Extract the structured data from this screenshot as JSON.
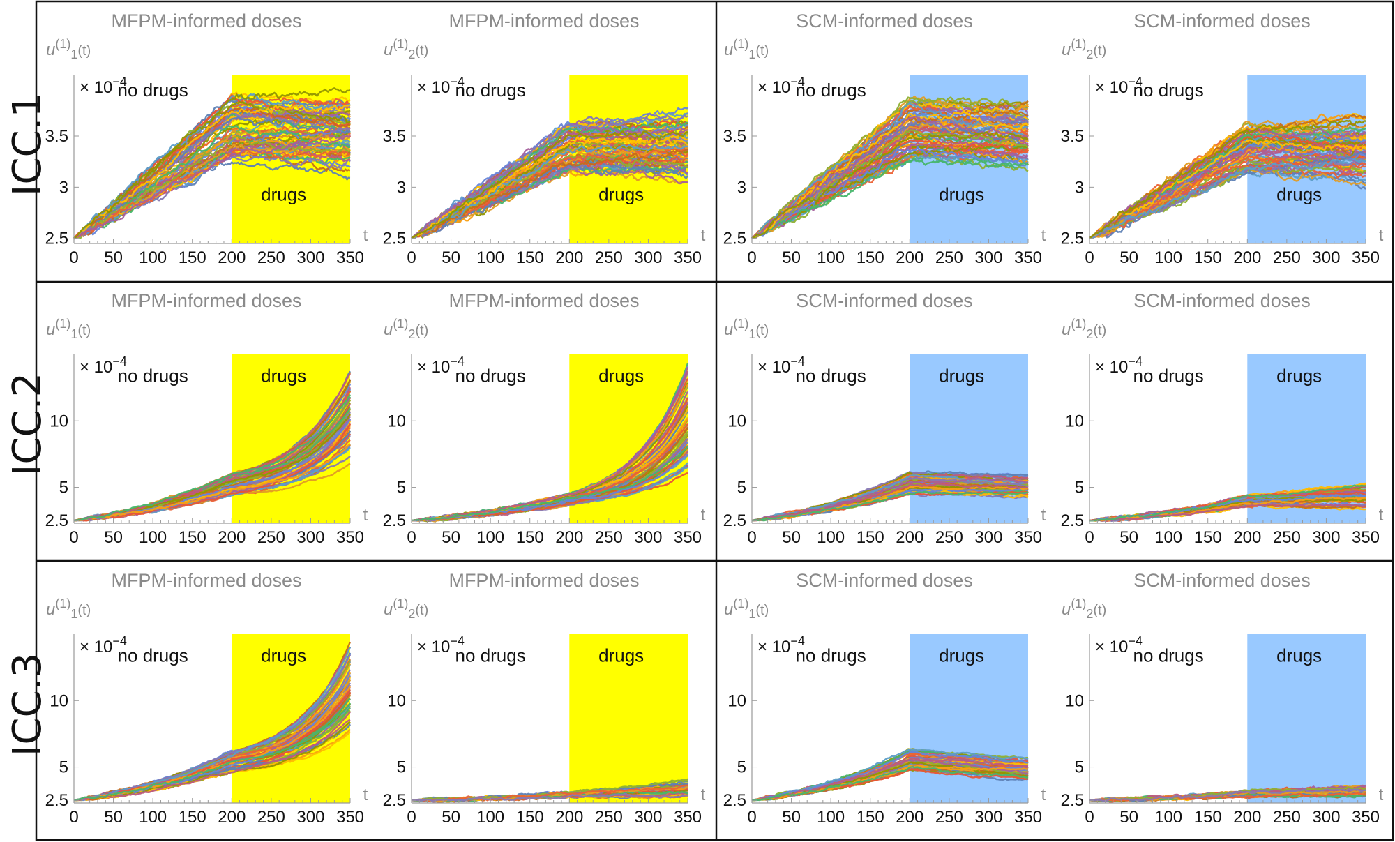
{
  "figure": {
    "row_labels": [
      "ICC.1",
      "ICC.2",
      "ICC.3"
    ],
    "colors": {
      "mfpm_shade": "#ffff00",
      "scm_shade": "#99c9ff",
      "series_palette": [
        "#5e81b5",
        "#e19c24",
        "#8fb032",
        "#eb6235",
        "#8778b3",
        "#c56e1a",
        "#5d9ec7",
        "#ffbf00",
        "#a5609d",
        "#929600",
        "#e95536",
        "#6685d9",
        "#f89f13",
        "#bc5b80",
        "#47b66d"
      ]
    }
  },
  "chart_data": [
    {
      "type": "line",
      "row": "ICC.1",
      "title": "MFPM-informed doses",
      "ylabel_base": "u",
      "ylabel_sup": "(1)",
      "ylabel_sub": "1",
      "ylabel_tail": "(t)",
      "xlabel": "t",
      "multiplier_text": "× 10",
      "multiplier_exp": "−4",
      "xticks": [
        "0",
        "50",
        "100",
        "150",
        "200",
        "250",
        "300",
        "350"
      ],
      "yticks": [
        "2.5",
        "3",
        "3.5"
      ],
      "yticks_values": [
        2.5,
        3,
        3.5
      ],
      "xlim": [
        0,
        350
      ],
      "ylim": [
        2.45,
        4.1
      ],
      "shade": {
        "from": 200,
        "to": 350,
        "color": "mfpm"
      },
      "annotations": [
        {
          "text": "no drugs",
          "x": 100,
          "y": 3.95
        },
        {
          "text": "drugs",
          "x": 237,
          "y": 2.93
        }
      ],
      "ensemble": {
        "n_paths": 70,
        "x_start": 0,
        "y_start": 2.5,
        "y_switch": [
          3.25,
          3.88
        ],
        "y_end": [
          3.1,
          3.97
        ],
        "x_switch": 200,
        "x_end": 350
      }
    },
    {
      "type": "line",
      "row": "ICC.1",
      "title": "MFPM-informed doses",
      "ylabel_base": "u",
      "ylabel_sup": "(1)",
      "ylabel_sub": "2",
      "ylabel_tail": "(t)",
      "xlabel": "t",
      "multiplier_text": "× 10",
      "multiplier_exp": "−4",
      "xticks": [
        "0",
        "50",
        "100",
        "150",
        "200",
        "250",
        "300",
        "350"
      ],
      "yticks": [
        "2.5",
        "3",
        "3.5"
      ],
      "yticks_values": [
        2.5,
        3,
        3.5
      ],
      "xlim": [
        0,
        350
      ],
      "ylim": [
        2.45,
        4.1
      ],
      "shade": {
        "from": 200,
        "to": 350,
        "color": "mfpm"
      },
      "annotations": [
        {
          "text": "no drugs",
          "x": 100,
          "y": 3.95
        },
        {
          "text": "drugs",
          "x": 237,
          "y": 2.93
        }
      ],
      "ensemble": {
        "n_paths": 70,
        "x_start": 0,
        "y_start": 2.5,
        "y_switch": [
          3.15,
          3.62
        ],
        "y_end": [
          3.0,
          3.78
        ],
        "x_switch": 200,
        "x_end": 350
      }
    },
    {
      "type": "line",
      "row": "ICC.1",
      "title": "SCM-informed doses",
      "ylabel_base": "u",
      "ylabel_sup": "(1)",
      "ylabel_sub": "1",
      "ylabel_tail": "(t)",
      "xlabel": "t",
      "multiplier_text": "× 10",
      "multiplier_exp": "−4",
      "xticks": [
        "0",
        "50",
        "100",
        "150",
        "200",
        "250",
        "300",
        "350"
      ],
      "yticks": [
        "2.5",
        "3",
        "3.5"
      ],
      "yticks_values": [
        2.5,
        3,
        3.5
      ],
      "xlim": [
        0,
        350
      ],
      "ylim": [
        2.45,
        4.1
      ],
      "shade": {
        "from": 200,
        "to": 350,
        "color": "scm"
      },
      "annotations": [
        {
          "text": "no drugs",
          "x": 100,
          "y": 3.95
        },
        {
          "text": "drugs",
          "x": 237,
          "y": 2.93
        }
      ],
      "ensemble": {
        "n_paths": 70,
        "x_start": 0,
        "y_start": 2.5,
        "y_switch": [
          3.25,
          3.88
        ],
        "y_end": [
          3.1,
          3.97
        ],
        "x_switch": 200,
        "x_end": 350
      }
    },
    {
      "type": "line",
      "row": "ICC.1",
      "title": "SCM-informed doses",
      "ylabel_base": "u",
      "ylabel_sup": "(1)",
      "ylabel_sub": "2",
      "ylabel_tail": "(t)",
      "xlabel": "t",
      "multiplier_text": "× 10",
      "multiplier_exp": "−4",
      "xticks": [
        "0",
        "50",
        "100",
        "150",
        "200",
        "250",
        "300",
        "350"
      ],
      "yticks": [
        "2.5",
        "3",
        "3.5"
      ],
      "yticks_values": [
        2.5,
        3,
        3.5
      ],
      "xlim": [
        0,
        350
      ],
      "ylim": [
        2.45,
        4.1
      ],
      "shade": {
        "from": 200,
        "to": 350,
        "color": "scm"
      },
      "annotations": [
        {
          "text": "no drugs",
          "x": 100,
          "y": 3.95
        },
        {
          "text": "drugs",
          "x": 237,
          "y": 2.93
        }
      ],
      "ensemble": {
        "n_paths": 70,
        "x_start": 0,
        "y_start": 2.5,
        "y_switch": [
          3.15,
          3.62
        ],
        "y_end": [
          3.0,
          3.78
        ],
        "x_switch": 200,
        "x_end": 350
      }
    },
    {
      "type": "line",
      "row": "ICC.2",
      "title": "MFPM-informed doses",
      "ylabel_base": "u",
      "ylabel_sup": "(1)",
      "ylabel_sub": "1",
      "ylabel_tail": "(t)",
      "xlabel": "t",
      "multiplier_text": "× 10",
      "multiplier_exp": "−4",
      "xticks": [
        "0",
        "50",
        "100",
        "150",
        "200",
        "250",
        "300",
        "350"
      ],
      "yticks": [
        "2.5",
        "5",
        "10"
      ],
      "yticks_values": [
        2.5,
        5,
        10
      ],
      "xlim": [
        0,
        350
      ],
      "ylim": [
        2.3,
        15
      ],
      "shade": {
        "from": 200,
        "to": 350,
        "color": "mfpm"
      },
      "annotations": [
        {
          "text": "no drugs",
          "x": 100,
          "y": 13.4
        },
        {
          "text": "drugs",
          "x": 237,
          "y": 13.4
        }
      ],
      "ensemble": {
        "n_paths": 60,
        "x_start": 0,
        "y_start": 2.5,
        "y_switch": [
          4.4,
          6.1
        ],
        "y_end": [
          6.5,
          15.0
        ],
        "x_switch": 200,
        "x_end": 350,
        "post_shape": "exp"
      }
    },
    {
      "type": "line",
      "row": "ICC.2",
      "title": "MFPM-informed doses",
      "ylabel_base": "u",
      "ylabel_sup": "(1)",
      "ylabel_sub": "2",
      "ylabel_tail": "(t)",
      "xlabel": "t",
      "multiplier_text": "× 10",
      "multiplier_exp": "−4",
      "xticks": [
        "0",
        "50",
        "100",
        "150",
        "200",
        "250",
        "300",
        "350"
      ],
      "yticks": [
        "2.5",
        "5",
        "10"
      ],
      "yticks_values": [
        2.5,
        5,
        10
      ],
      "xlim": [
        0,
        350
      ],
      "ylim": [
        2.3,
        15
      ],
      "shade": {
        "from": 200,
        "to": 350,
        "color": "mfpm"
      },
      "annotations": [
        {
          "text": "no drugs",
          "x": 100,
          "y": 13.4
        },
        {
          "text": "drugs",
          "x": 237,
          "y": 13.4
        }
      ],
      "ensemble": {
        "n_paths": 60,
        "x_start": 0,
        "y_start": 2.5,
        "y_switch": [
          3.7,
          4.6
        ],
        "y_end": [
          4.8,
          15.0
        ],
        "x_switch": 200,
        "x_end": 350,
        "post_shape": "exp"
      }
    },
    {
      "type": "line",
      "row": "ICC.2",
      "title": "SCM-informed doses",
      "ylabel_base": "u",
      "ylabel_sup": "(1)",
      "ylabel_sub": "1",
      "ylabel_tail": "(t)",
      "xlabel": "t",
      "multiplier_text": "× 10",
      "multiplier_exp": "−4",
      "xticks": [
        "0",
        "50",
        "100",
        "150",
        "200",
        "250",
        "300",
        "350"
      ],
      "yticks": [
        "2.5",
        "5",
        "10"
      ],
      "yticks_values": [
        2.5,
        5,
        10
      ],
      "xlim": [
        0,
        350
      ],
      "ylim": [
        2.3,
        15
      ],
      "shade": {
        "from": 200,
        "to": 350,
        "color": "scm"
      },
      "annotations": [
        {
          "text": "no drugs",
          "x": 100,
          "y": 13.4
        },
        {
          "text": "drugs",
          "x": 237,
          "y": 13.4
        }
      ],
      "ensemble": {
        "n_paths": 60,
        "x_start": 0,
        "y_start": 2.5,
        "y_switch": [
          4.4,
          6.1
        ],
        "y_end": [
          3.9,
          6.0
        ],
        "x_switch": 200,
        "x_end": 350
      }
    },
    {
      "type": "line",
      "row": "ICC.2",
      "title": "SCM-informed doses",
      "ylabel_base": "u",
      "ylabel_sup": "(1)",
      "ylabel_sub": "2",
      "ylabel_tail": "(t)",
      "xlabel": "t",
      "multiplier_text": "× 10",
      "multiplier_exp": "−4",
      "xticks": [
        "0",
        "50",
        "100",
        "150",
        "200",
        "250",
        "300",
        "350"
      ],
      "yticks": [
        "2.5",
        "5",
        "10"
      ],
      "yticks_values": [
        2.5,
        5,
        10
      ],
      "xlim": [
        0,
        350
      ],
      "ylim": [
        2.3,
        15
      ],
      "shade": {
        "from": 200,
        "to": 350,
        "color": "scm"
      },
      "annotations": [
        {
          "text": "no drugs",
          "x": 100,
          "y": 13.4
        },
        {
          "text": "drugs",
          "x": 237,
          "y": 13.4
        }
      ],
      "ensemble": {
        "n_paths": 60,
        "x_start": 0,
        "y_start": 2.5,
        "y_switch": [
          3.6,
          4.4
        ],
        "y_end": [
          3.2,
          5.5
        ],
        "x_switch": 200,
        "x_end": 350
      }
    },
    {
      "type": "line",
      "row": "ICC.3",
      "title": "MFPM-informed doses",
      "ylabel_base": "u",
      "ylabel_sup": "(1)",
      "ylabel_sub": "1",
      "ylabel_tail": "(t)",
      "xlabel": "t",
      "multiplier_text": "× 10",
      "multiplier_exp": "−4",
      "xticks": [
        "0",
        "50",
        "100",
        "150",
        "200",
        "250",
        "300",
        "350"
      ],
      "yticks": [
        "2.5",
        "5",
        "10"
      ],
      "yticks_values": [
        2.5,
        5,
        10
      ],
      "xlim": [
        0,
        350
      ],
      "ylim": [
        2.3,
        15
      ],
      "shade": {
        "from": 200,
        "to": 350,
        "color": "mfpm"
      },
      "annotations": [
        {
          "text": "no drugs",
          "x": 100,
          "y": 13.4
        },
        {
          "text": "drugs",
          "x": 237,
          "y": 13.4
        }
      ],
      "ensemble": {
        "n_paths": 60,
        "x_start": 0,
        "y_start": 2.5,
        "y_switch": [
          4.6,
          6.2
        ],
        "y_end": [
          7.0,
          15.0
        ],
        "x_switch": 200,
        "x_end": 350,
        "post_shape": "exp"
      }
    },
    {
      "type": "line",
      "row": "ICC.3",
      "title": "MFPM-informed doses",
      "ylabel_base": "u",
      "ylabel_sup": "(1)",
      "ylabel_sub": "2",
      "ylabel_tail": "(t)",
      "xlabel": "t",
      "multiplier_text": "× 10",
      "multiplier_exp": "−4",
      "xticks": [
        "0",
        "50",
        "100",
        "150",
        "200",
        "250",
        "300",
        "350"
      ],
      "yticks": [
        "2.5",
        "5",
        "10"
      ],
      "yticks_values": [
        2.5,
        5,
        10
      ],
      "xlim": [
        0,
        350
      ],
      "ylim": [
        2.3,
        15
      ],
      "shade": {
        "from": 200,
        "to": 350,
        "color": "mfpm"
      },
      "annotations": [
        {
          "text": "no drugs",
          "x": 100,
          "y": 13.4
        },
        {
          "text": "drugs",
          "x": 237,
          "y": 13.4
        }
      ],
      "ensemble": {
        "n_paths": 50,
        "x_start": 0,
        "y_start": 2.5,
        "y_switch": [
          2.75,
          3.1
        ],
        "y_end": [
          2.6,
          4.0
        ],
        "x_switch": 200,
        "x_end": 350
      }
    },
    {
      "type": "line",
      "row": "ICC.3",
      "title": "SCM-informed doses",
      "ylabel_base": "u",
      "ylabel_sup": "(1)",
      "ylabel_sub": "1",
      "ylabel_tail": "(t)",
      "xlabel": "t",
      "multiplier_text": "× 10",
      "multiplier_exp": "−4",
      "xticks": [
        "0",
        "50",
        "100",
        "150",
        "200",
        "250",
        "300",
        "350"
      ],
      "yticks": [
        "2.5",
        "5",
        "10"
      ],
      "yticks_values": [
        2.5,
        5,
        10
      ],
      "xlim": [
        0,
        350
      ],
      "ylim": [
        2.3,
        15
      ],
      "shade": {
        "from": 200,
        "to": 350,
        "color": "scm"
      },
      "annotations": [
        {
          "text": "no drugs",
          "x": 100,
          "y": 13.4
        },
        {
          "text": "drugs",
          "x": 237,
          "y": 13.4
        }
      ],
      "ensemble": {
        "n_paths": 60,
        "x_start": 0,
        "y_start": 2.5,
        "y_switch": [
          4.7,
          6.3
        ],
        "y_end": [
          3.8,
          5.9
        ],
        "x_switch": 200,
        "x_end": 350
      }
    },
    {
      "type": "line",
      "row": "ICC.3",
      "title": "SCM-informed doses",
      "ylabel_base": "u",
      "ylabel_sup": "(1)",
      "ylabel_sub": "2",
      "ylabel_tail": "(t)",
      "xlabel": "t",
      "multiplier_text": "× 10",
      "multiplier_exp": "−4",
      "xticks": [
        "0",
        "50",
        "100",
        "150",
        "200",
        "250",
        "300",
        "350"
      ],
      "yticks": [
        "2.5",
        "5",
        "10"
      ],
      "yticks_values": [
        2.5,
        5,
        10
      ],
      "xlim": [
        0,
        350
      ],
      "ylim": [
        2.3,
        15
      ],
      "shade": {
        "from": 200,
        "to": 350,
        "color": "scm"
      },
      "annotations": [
        {
          "text": "no drugs",
          "x": 100,
          "y": 13.4
        },
        {
          "text": "drugs",
          "x": 237,
          "y": 13.4
        }
      ],
      "ensemble": {
        "n_paths": 50,
        "x_start": 0,
        "y_start": 2.5,
        "y_switch": [
          2.8,
          3.2
        ],
        "y_end": [
          2.7,
          3.6
        ],
        "x_switch": 200,
        "x_end": 350
      }
    }
  ]
}
